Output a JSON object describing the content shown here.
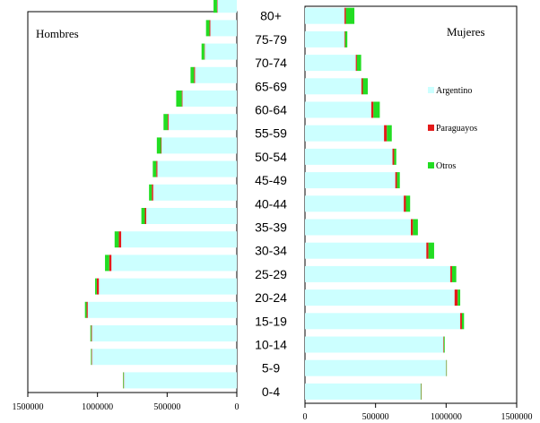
{
  "chart_data": {
    "type": "bar",
    "layout": "population-pyramid",
    "orientation": "horizontal",
    "stacked": true,
    "age_groups": [
      "0-4",
      "5-9",
      "10-14",
      "15-19",
      "20-24",
      "25-29",
      "30-34",
      "35-39",
      "40-44",
      "45-49",
      "50-54",
      "55-59",
      "60-64",
      "65-69",
      "70-74",
      "75-79",
      "80+"
    ],
    "series_names": [
      "Argentino",
      "Paraguayos",
      "Otros"
    ],
    "colors": {
      "Argentino": "#ccffff",
      "Paraguayos": "#e41b1b",
      "Otros": "#22dd22"
    },
    "men": {
      "title": "Hombres",
      "xlim": [
        0,
        1500000
      ],
      "x_reversed": true,
      "tick_values": [
        1500000,
        1000000,
        500000,
        0
      ],
      "tick_labels": [
        "1500000",
        "1000000",
        "500000",
        "0"
      ],
      "series": [
        {
          "name": "Argentino",
          "values": [
            810000,
            1040000,
            1040000,
            1070000,
            990000,
            900000,
            830000,
            650000,
            600000,
            570000,
            540000,
            490000,
            390000,
            300000,
            230000,
            190000,
            140000
          ]
        },
        {
          "name": "Paraguayos",
          "values": [
            3000,
            3000,
            5000,
            8000,
            15000,
            16000,
            17000,
            10000,
            10000,
            8000,
            4000,
            6000,
            5000,
            7000,
            3000,
            6000,
            2000
          ]
        },
        {
          "name": "Otros",
          "values": [
            4000,
            4000,
            6000,
            12000,
            12000,
            30000,
            30000,
            25000,
            20000,
            25000,
            30000,
            30000,
            40000,
            25000,
            20000,
            25000,
            25000
          ]
        }
      ]
    },
    "women": {
      "title": "Mujeres",
      "xlim": [
        0,
        1500000
      ],
      "x_reversed": false,
      "tick_values": [
        0,
        500000,
        1000000,
        1500000
      ],
      "tick_labels": [
        "0",
        "500000",
        "1000000",
        "1500000"
      ],
      "series": [
        {
          "name": "Argentino",
          "values": [
            820000,
            1000000,
            980000,
            1100000,
            1060000,
            1030000,
            860000,
            750000,
            700000,
            640000,
            620000,
            560000,
            470000,
            400000,
            360000,
            280000,
            280000
          ]
        },
        {
          "name": "Paraguayos",
          "values": [
            2000,
            2000,
            4000,
            12000,
            22000,
            12000,
            15000,
            15000,
            15000,
            12000,
            12000,
            20000,
            15000,
            10000,
            8000,
            5000,
            10000
          ]
        },
        {
          "name": "Otros",
          "values": [
            3000,
            3000,
            6000,
            15000,
            18000,
            30000,
            40000,
            35000,
            30000,
            20000,
            15000,
            35000,
            45000,
            35000,
            30000,
            15000,
            60000
          ]
        }
      ]
    },
    "legend": {
      "placement": "right",
      "entries": [
        "Argentino",
        "Paraguayos",
        "Otros"
      ]
    }
  }
}
